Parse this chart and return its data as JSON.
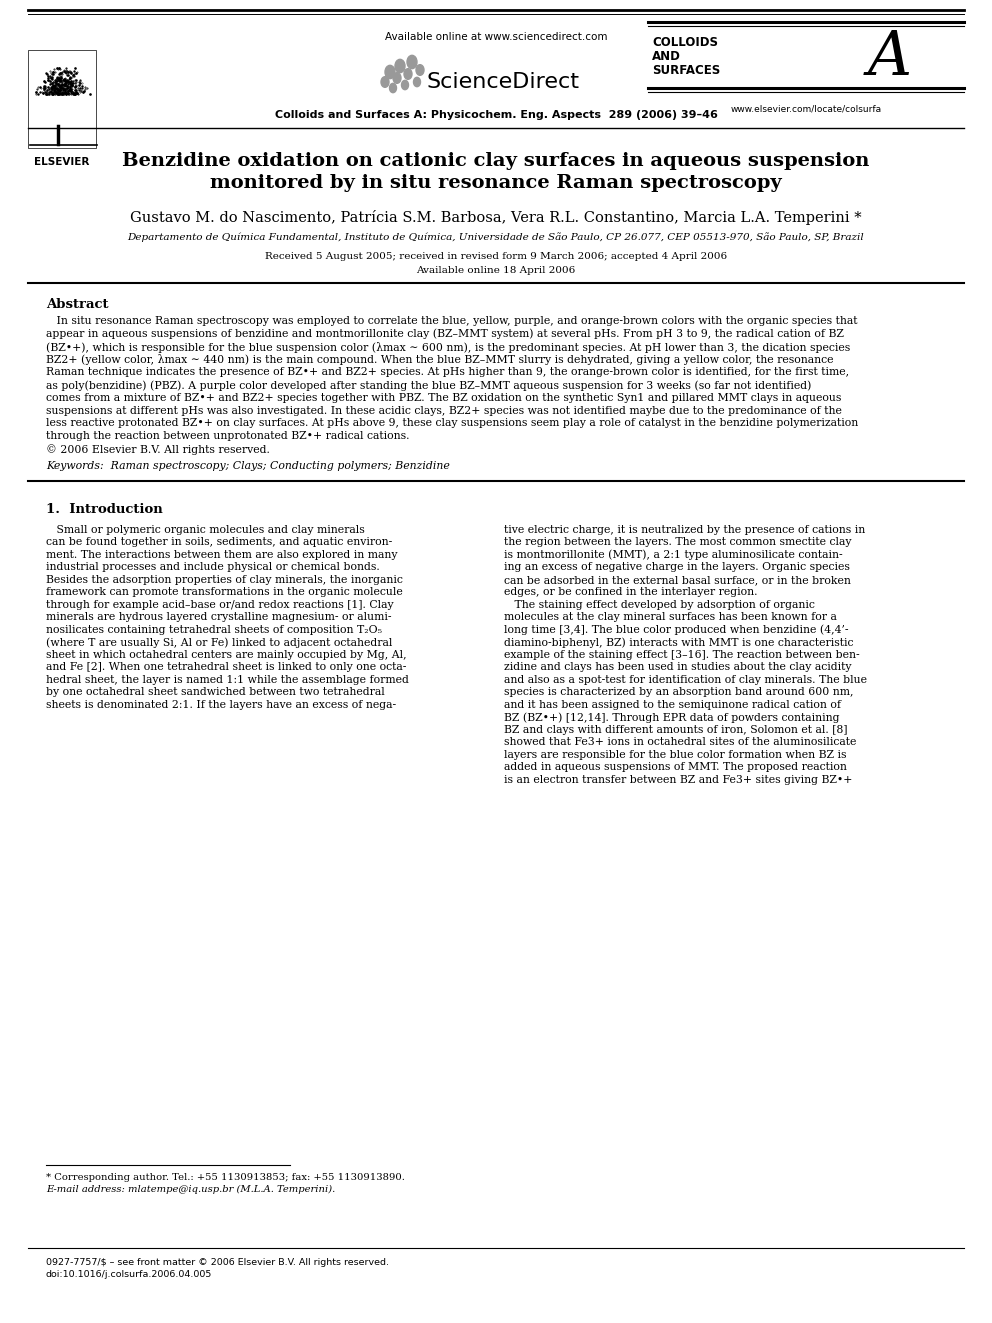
{
  "title_line1": "Benzidine oxidation on cationic clay surfaces in aqueous suspension",
  "title_line2": "monitored by in situ resonance Raman spectroscopy",
  "authors": "Gustavo M. do Nascimento, Patrícia S.M. Barbosa, Vera R.L. Constantino, Marcia L.A. Temperini *",
  "affiliation": "Departamento de Química Fundamental, Instituto de Química, Universidade de São Paulo, CP 26.077, CEP 05513-970, São Paulo, SP, Brazil",
  "received": "Received 5 August 2005; received in revised form 9 March 2006; accepted 4 April 2006",
  "available": "Available online 18 April 2006",
  "journal_header": "Colloids and Surfaces A: Physicochem. Eng. Aspects  289 (2006) 39–46",
  "online_text": "Available online at www.sciencedirect.com",
  "colloids_line1": "COLLOIDS",
  "colloids_line2": "AND",
  "colloids_line3": "SURFACES",
  "journal_url": "www.elsevier.com/locate/colsurfa",
  "issn": "0927-7757/$ – see front matter © 2006 Elsevier B.V. All rights reserved.",
  "doi": "doi:10.1016/j.colsurfa.2006.04.005",
  "abstract_title": "Abstract",
  "keywords": "Keywords:  Raman spectroscopy; Clays; Conducting polymers; Benzidine",
  "section1_title": "1.  Introduction",
  "footnote1": "* Corresponding author. Tel.: +55 1130913853; fax: +55 1130913890.",
  "footnote2": "E-mail address: mlatempe@iq.usp.br (M.L.A. Temperini).",
  "background_color": "#ffffff",
  "abstract_lines": [
    "   In situ resonance Raman spectroscopy was employed to correlate the blue, yellow, purple, and orange-brown colors with the organic species that",
    "appear in aqueous suspensions of benzidine and montmorillonite clay (BZ–MMT system) at several pHs. From pH 3 to 9, the radical cation of BZ",
    "(BZ•+), which is responsible for the blue suspension color (λmax ∼ 600 nm), is the predominant species. At pH lower than 3, the dication species",
    "BZ2+ (yellow color, λmax ∼ 440 nm) is the main compound. When the blue BZ–MMT slurry is dehydrated, giving a yellow color, the resonance",
    "Raman technique indicates the presence of BZ•+ and BZ2+ species. At pHs higher than 9, the orange-brown color is identified, for the first time,",
    "as poly(benzidine) (PBZ). A purple color developed after standing the blue BZ–MMT aqueous suspension for 3 weeks (so far not identified)",
    "comes from a mixture of BZ•+ and BZ2+ species together with PBZ. The BZ oxidation on the synthetic Syn1 and pillared MMT clays in aqueous",
    "suspensions at different pHs was also investigated. In these acidic clays, BZ2+ species was not identified maybe due to the predominance of the",
    "less reactive protonated BZ•+ on clay surfaces. At pHs above 9, these clay suspensions seem play a role of catalyst in the benzidine polymerization",
    "through the reaction between unprotonated BZ•+ radical cations.",
    "© 2006 Elsevier B.V. All rights reserved."
  ],
  "col1_lines": [
    "   Small or polymeric organic molecules and clay minerals",
    "can be found together in soils, sediments, and aquatic environ-",
    "ment. The interactions between them are also explored in many",
    "industrial processes and include physical or chemical bonds.",
    "Besides the adsorption properties of clay minerals, the inorganic",
    "framework can promote transformations in the organic molecule",
    "through for example acid–base or/and redox reactions [1]. Clay",
    "minerals are hydrous layered crystalline magnesium- or alumi-",
    "nosilicates containing tetrahedral sheets of composition T₂O₅",
    "(where T are usually Si, Al or Fe) linked to adjacent octahedral",
    "sheet in which octahedral centers are mainly occupied by Mg, Al,",
    "and Fe [2]. When one tetrahedral sheet is linked to only one octa-",
    "hedral sheet, the layer is named 1:1 while the assemblage formed",
    "by one octahedral sheet sandwiched between two tetrahedral",
    "sheets is denominated 2:1. If the layers have an excess of nega-"
  ],
  "col2_lines": [
    "tive electric charge, it is neutralized by the presence of cations in",
    "the region between the layers. The most common smectite clay",
    "is montmorillonite (MMT), a 2:1 type aluminosilicate contain-",
    "ing an excess of negative charge in the layers. Organic species",
    "can be adsorbed in the external basal surface, or in the broken",
    "edges, or be confined in the interlayer region.",
    "   The staining effect developed by adsorption of organic",
    "molecules at the clay mineral surfaces has been known for a",
    "long time [3,4]. The blue color produced when benzidine (4,4’-",
    "diamino-biphenyl, BZ) interacts with MMT is one characteristic",
    "example of the staining effect [3–16]. The reaction between ben-",
    "zidine and clays has been used in studies about the clay acidity",
    "and also as a spot-test for identification of clay minerals. The blue",
    "species is characterized by an absorption band around 600 nm,",
    "and it has been assigned to the semiquinone radical cation of",
    "BZ (BZ•+) [12,14]. Through EPR data of powders containing",
    "BZ and clays with different amounts of iron, Solomon et al. [8]",
    "showed that Fe3+ ions in octahedral sites of the aluminosilicate",
    "layers are responsible for the blue color formation when BZ is",
    "added in aqueous suspensions of MMT. The proposed reaction",
    "is an electron transfer between BZ and Fe3+ sites giving BZ•+"
  ]
}
